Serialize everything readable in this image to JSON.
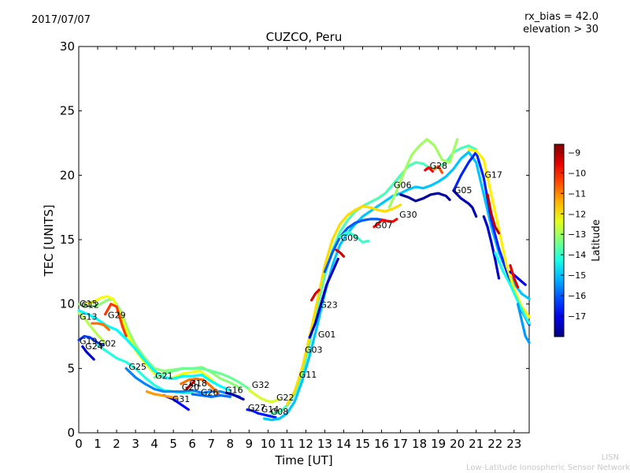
{
  "header": {
    "date": "2017/07/07",
    "rx_bias": "rx_bias = 42.0",
    "elevation": "elevation > 30"
  },
  "branding": {
    "short": "LISN",
    "full": "Low-Latitude Ionospheric Sensor Network"
  },
  "chart_data": {
    "type": "scatter",
    "title": "CUZCO, Peru",
    "xlabel": "Time [UT]",
    "ylabel": "TEC [UNITS]",
    "xlim": [
      0,
      23.8
    ],
    "ylim": [
      0,
      30
    ],
    "xticks": [
      0,
      1,
      2,
      3,
      4,
      5,
      6,
      7,
      8,
      9,
      10,
      11,
      12,
      13,
      14,
      15,
      16,
      17,
      18,
      19,
      20,
      21,
      22,
      23
    ],
    "yticks": [
      0,
      5,
      10,
      15,
      20,
      25,
      30
    ],
    "grid": false,
    "colorbar": {
      "label": "Latitude",
      "range": [
        -18,
        -8.6
      ],
      "ticks": [
        -9,
        -10,
        -11,
        -12,
        -13,
        -14,
        -15,
        -16,
        -17
      ],
      "colormap": "jet"
    },
    "satellite_labels": [
      {
        "name": "G15",
        "x": 0.0,
        "y": 9.8
      },
      {
        "name": "G12",
        "x": 0.1,
        "y": 9.7
      },
      {
        "name": "G13",
        "x": 0.0,
        "y": 8.8
      },
      {
        "name": "G29",
        "x": 1.5,
        "y": 8.9
      },
      {
        "name": "G19",
        "x": 0.0,
        "y": 6.9
      },
      {
        "name": "G24",
        "x": 0.3,
        "y": 6.5
      },
      {
        "name": "G02",
        "x": 1.0,
        "y": 6.7
      },
      {
        "name": "G25",
        "x": 2.6,
        "y": 4.9
      },
      {
        "name": "G21",
        "x": 4.0,
        "y": 4.2
      },
      {
        "name": "G18",
        "x": 5.8,
        "y": 3.6
      },
      {
        "name": "G20",
        "x": 5.4,
        "y": 3.3
      },
      {
        "name": "G31",
        "x": 4.9,
        "y": 2.4
      },
      {
        "name": "G26",
        "x": 6.4,
        "y": 2.9
      },
      {
        "name": "G16",
        "x": 7.7,
        "y": 3.1
      },
      {
        "name": "G32",
        "x": 9.1,
        "y": 3.5
      },
      {
        "name": "G27",
        "x": 8.9,
        "y": 1.7
      },
      {
        "name": "G14",
        "x": 9.6,
        "y": 1.6
      },
      {
        "name": "G08",
        "x": 10.1,
        "y": 1.4
      },
      {
        "name": "G22",
        "x": 10.4,
        "y": 2.5
      },
      {
        "name": "G11",
        "x": 11.6,
        "y": 4.3
      },
      {
        "name": "G03",
        "x": 11.9,
        "y": 6.2
      },
      {
        "name": "G01",
        "x": 12.6,
        "y": 7.4
      },
      {
        "name": "G23",
        "x": 12.7,
        "y": 9.7
      },
      {
        "name": "G09",
        "x": 13.8,
        "y": 14.9
      },
      {
        "name": "G07",
        "x": 15.6,
        "y": 15.9
      },
      {
        "name": "G06",
        "x": 16.6,
        "y": 19.0
      },
      {
        "name": "G30",
        "x": 16.9,
        "y": 16.7
      },
      {
        "name": "G28",
        "x": 18.5,
        "y": 20.5
      },
      {
        "name": "G05",
        "x": 19.8,
        "y": 18.6
      },
      {
        "name": "G17",
        "x": 21.4,
        "y": 19.8
      }
    ],
    "series": [
      {
        "lat": -13.2,
        "x": [
          0,
          0.5,
          1,
          1.5,
          1.8,
          2.2,
          2.6,
          3,
          3.5,
          4,
          4.5,
          5,
          5.5,
          6,
          6.5,
          7,
          7.5,
          8,
          8.5
        ],
        "y": [
          10,
          9.8,
          9.9,
          10.3,
          10.4,
          9.5,
          8,
          6.8,
          5.8,
          5,
          4.8,
          4.9,
          5,
          5,
          5.1,
          4.7,
          4.2,
          3.9,
          3.5
        ]
      },
      {
        "lat": -12.2,
        "x": [
          0.4,
          0.8,
          1.2,
          1.5,
          1.8,
          2.2,
          2.6,
          3,
          3.5,
          4,
          4.5,
          5,
          5.5,
          6,
          6.4,
          6.8,
          7.2
        ],
        "y": [
          10,
          10.2,
          10.5,
          10.6,
          10.4,
          9.2,
          7.6,
          6.4,
          5.4,
          4.6,
          4.3,
          4.3,
          4.6,
          4.7,
          4.8,
          4.4,
          3.9
        ]
      },
      {
        "lat": -10.3,
        "x": [
          1.4,
          1.7,
          2,
          2.3,
          2.5
        ],
        "y": [
          9.2,
          10,
          9.8,
          8.3,
          7.5
        ]
      },
      {
        "lat": -14.5,
        "x": [
          0,
          0.5,
          1,
          1.5,
          2,
          2.5,
          3,
          3.5,
          4,
          4.5,
          5,
          5.5,
          6,
          6.5,
          7,
          7.5,
          8
        ],
        "y": [
          9.5,
          9.2,
          8.8,
          8.3,
          8,
          7.3,
          6.5,
          5.6,
          4.8,
          4.3,
          4.2,
          4.4,
          4.4,
          4.5,
          4,
          3.6,
          3.3
        ]
      },
      {
        "lat": -12.8,
        "x": [
          0,
          0.3,
          0.6,
          1,
          1.4
        ],
        "y": [
          9.3,
          8.9,
          8.3,
          7.6,
          7
        ]
      },
      {
        "lat": -17.2,
        "x": [
          0.2,
          0.4,
          0.6,
          0.8
        ],
        "y": [
          6.7,
          6.3,
          6,
          5.7
        ]
      },
      {
        "lat": -16.3,
        "x": [
          0,
          0.3,
          0.6,
          1,
          1.3
        ],
        "y": [
          7.2,
          7.5,
          7.4,
          7,
          6.8
        ]
      },
      {
        "lat": -10.8,
        "x": [
          0.7,
          1,
          1.3,
          1.6
        ],
        "y": [
          8.5,
          8.5,
          8.4,
          8
        ]
      },
      {
        "lat": -14.2,
        "x": [
          1,
          1.5,
          2,
          2.5,
          3,
          3.5,
          4,
          4.5,
          5,
          5.5,
          6
        ],
        "y": [
          6.8,
          6.3,
          5.8,
          5.5,
          5,
          4.3,
          3.7,
          3.3,
          3.2,
          3.1,
          3.1
        ]
      },
      {
        "lat": -15.6,
        "x": [
          2.5,
          3,
          3.5,
          4,
          4.5,
          5,
          5.5,
          6,
          6.5,
          7,
          7.5,
          8,
          8.5
        ],
        "y": [
          5,
          4.3,
          3.8,
          3.4,
          3.2,
          3.2,
          3.2,
          3.3,
          3.1,
          3.2,
          3.2,
          3,
          2.8
        ]
      },
      {
        "lat": -16.8,
        "x": [
          4.5,
          5,
          5.3,
          5.6,
          5.8
        ],
        "y": [
          2.9,
          2.6,
          2.3,
          2,
          1.8
        ]
      },
      {
        "lat": -11.2,
        "x": [
          3.6,
          4,
          4.4,
          4.8,
          5.2
        ],
        "y": [
          3.2,
          3,
          2.9,
          2.8,
          2.7
        ]
      },
      {
        "lat": -13.5,
        "x": [
          4,
          4.5,
          5,
          5.5,
          6,
          6.5,
          7,
          7.5,
          8,
          8.5,
          9
        ],
        "y": [
          4.3,
          4.6,
          4.8,
          5,
          5,
          5,
          4.8,
          4.6,
          4.3,
          3.9,
          3.4
        ]
      },
      {
        "lat": -10.8,
        "x": [
          5.4,
          5.8,
          6.2,
          6.6,
          7,
          7.4
        ],
        "y": [
          3.8,
          4.1,
          4.2,
          4.1,
          3.6,
          3
        ]
      },
      {
        "lat": -9.3,
        "x": [
          5.7,
          5.9,
          6.1
        ],
        "y": [
          3.4,
          3.7,
          4
        ]
      },
      {
        "lat": -15.8,
        "x": [
          6,
          6.5,
          7,
          7.5,
          8
        ],
        "y": [
          3,
          2.9,
          2.8,
          2.9,
          2.8
        ]
      },
      {
        "lat": -17.6,
        "x": [
          7.8,
          8.1,
          8.4,
          8.7
        ],
        "y": [
          3.1,
          3,
          2.8,
          2.6
        ]
      },
      {
        "lat": -16.6,
        "x": [
          8.9,
          9.2,
          9.5,
          9.8,
          10.1,
          10.4
        ],
        "y": [
          1.8,
          1.7,
          1.5,
          1.4,
          1.3,
          1.2
        ]
      },
      {
        "lat": -12.5,
        "x": [
          9,
          9.3,
          9.6,
          9.9,
          10.2,
          10.6
        ],
        "y": [
          3.3,
          3,
          2.7,
          2.5,
          2.4,
          2.6
        ]
      },
      {
        "lat": -15,
        "x": [
          9.8,
          10.2,
          10.6,
          11,
          11.4,
          11.8,
          12.2,
          12.6,
          13,
          13.4,
          13.8,
          14.2,
          14.6,
          15,
          15.4,
          15.8,
          16.2,
          16.6,
          17,
          17.4,
          17.8,
          18.2,
          18.6,
          19,
          19.4,
          19.8,
          20.2,
          20.6,
          21,
          21.4,
          21.8,
          22.2,
          22.6,
          23,
          23.4,
          23.8
        ],
        "y": [
          1.1,
          1.0,
          1.1,
          1.5,
          2.4,
          4,
          6,
          8.3,
          10.8,
          13,
          14.6,
          15.5,
          16.2,
          16.8,
          17.2,
          17.6,
          18,
          18.4,
          18.6,
          18.9,
          19.1,
          19,
          19.2,
          19.5,
          19.9,
          20.5,
          21.3,
          21.8,
          21,
          18.5,
          16,
          14,
          12.6,
          11.6,
          10.8,
          10.4
        ]
      },
      {
        "lat": -13.8,
        "x": [
          10.2,
          10.6,
          11,
          11.4,
          11.8,
          12.2,
          12.6,
          13,
          13.4,
          13.8,
          14.2,
          14.6,
          15,
          15.4,
          15.8,
          16.2,
          16.6,
          17,
          17.4,
          17.8,
          18.2,
          18.6,
          19,
          19.4,
          19.8,
          20.2,
          20.6,
          21
        ],
        "y": [
          1.5,
          1.6,
          2.1,
          3,
          4.6,
          7,
          9.7,
          12.2,
          14.2,
          15.6,
          16.5,
          17.2,
          17.6,
          17.9,
          18.2,
          18.6,
          19.3,
          20,
          20.7,
          21,
          20.9,
          20.5,
          20.6,
          21,
          21.8,
          22.1,
          22.3,
          22
        ]
      },
      {
        "lat": -11.8,
        "x": [
          11,
          11.4,
          11.8,
          12.2,
          12.6,
          13,
          13.4,
          13.8,
          14.2,
          14.6,
          15,
          15.4,
          15.8,
          16.2,
          16.6,
          17
        ],
        "y": [
          2.2,
          3.2,
          5,
          7.5,
          10.2,
          13,
          15,
          16.2,
          16.9,
          17.3,
          17.6,
          17.5,
          17.3,
          17.2,
          17.4,
          17.7
        ]
      },
      {
        "lat": -9.5,
        "x": [
          12.3,
          12.5,
          12.7
        ],
        "y": [
          10.3,
          10.8,
          11.1
        ]
      },
      {
        "lat": -17.4,
        "x": [
          12.2,
          12.5,
          12.8,
          13.1,
          13.4,
          13.7
        ],
        "y": [
          7.4,
          8.5,
          10,
          11.5,
          12.5,
          13.5
        ]
      },
      {
        "lat": -9.4,
        "x": [
          13.6,
          13.8,
          14
        ],
        "y": [
          14.2,
          14,
          13.7
        ]
      },
      {
        "lat": -16,
        "x": [
          13,
          13.4,
          13.8,
          14.2,
          14.6,
          15,
          15.4,
          15.8,
          16.2
        ],
        "y": [
          12.5,
          14,
          15.2,
          15.9,
          16.3,
          16.5,
          16.6,
          16.6,
          16.5
        ]
      },
      {
        "lat": -14,
        "x": [
          13.8,
          14.2,
          14.6,
          15,
          15.3
        ],
        "y": [
          15.2,
          15.6,
          15.3,
          14.8,
          14.9
        ]
      },
      {
        "lat": -9.8,
        "x": [
          15.6,
          15.8,
          16,
          16.6,
          16.8
        ],
        "y": [
          16,
          16.2,
          16.5,
          16.4,
          16.6
        ]
      },
      {
        "lat": -13,
        "x": [
          16.4,
          16.8,
          17.2,
          17.6,
          18,
          18.4,
          18.8,
          19.2,
          19.6,
          20
        ],
        "y": [
          17.5,
          18.8,
          20.3,
          21.6,
          22.3,
          22.8,
          22.3,
          21.2,
          21,
          22.8
        ]
      },
      {
        "lat": -17.7,
        "x": [
          17,
          17.4,
          17.8,
          18.2,
          18.6,
          19,
          19.4,
          19.6
        ],
        "y": [
          18.5,
          18.3,
          18,
          18.2,
          18.5,
          18.6,
          18.4,
          18.1
        ]
      },
      {
        "lat": -9.7,
        "x": [
          18.3,
          18.5,
          18.7
        ],
        "y": [
          20.4,
          20.6,
          20.3
        ]
      },
      {
        "lat": -10.5,
        "x": [
          18.8,
          19,
          19.2
        ],
        "y": [
          20.5,
          20.7,
          20.2
        ]
      },
      {
        "lat": -16.5,
        "x": [
          19.8,
          20.2,
          20.6,
          21,
          21.4,
          21.8,
          22.2,
          22.6,
          23,
          23.4,
          23.8
        ],
        "y": [
          18.8,
          20,
          21,
          21.8,
          19.8,
          16.5,
          14.3,
          12.6,
          11,
          9.5,
          8.4
        ]
      },
      {
        "lat": -17.5,
        "x": [
          19.8,
          20.2,
          20.6,
          20.8,
          21
        ],
        "y": [
          18.8,
          18.2,
          17.8,
          17.5,
          16.8
        ]
      },
      {
        "lat": -12,
        "x": [
          20.6,
          21,
          21.4,
          21.8,
          22.2,
          22.6,
          23,
          23.4,
          23.8
        ],
        "y": [
          22,
          21.9,
          21.2,
          18.5,
          15.8,
          13,
          11.2,
          9.8,
          9
        ]
      },
      {
        "lat": -9.2,
        "x": [
          21.6,
          21.8,
          22,
          22.2
        ],
        "y": [
          18.5,
          17,
          16,
          15.5
        ]
      },
      {
        "lat": -17.3,
        "x": [
          21.4,
          21.6,
          21.8,
          22,
          22.2
        ],
        "y": [
          16.8,
          16,
          14.8,
          13.5,
          12
        ]
      },
      {
        "lat": -14.3,
        "x": [
          22,
          22.4,
          22.8,
          23.2,
          23.6,
          23.8
        ],
        "y": [
          14,
          12.6,
          11.5,
          10.2,
          9,
          8.5
        ]
      },
      {
        "lat": -16.9,
        "x": [
          22.8,
          23.2,
          23.6
        ],
        "y": [
          12.5,
          12,
          11.5
        ]
      },
      {
        "lat": -15.4,
        "x": [
          23.2,
          23.6,
          23.8
        ],
        "y": [
          10,
          7.5,
          7
        ]
      },
      {
        "lat": -9.6,
        "x": [
          22.8,
          23,
          23.2
        ],
        "y": [
          13,
          12,
          11.3
        ]
      }
    ]
  }
}
